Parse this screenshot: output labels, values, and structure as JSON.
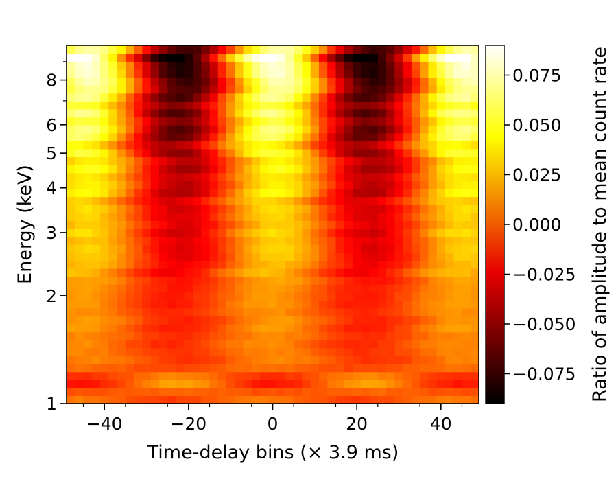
{
  "chart_data": {
    "type": "heatmap",
    "title": "",
    "xlabel": "Time-delay bins (× 3.9 ms)",
    "ylabel": "Energy (keV)",
    "colorbar_label": "Ratio of amplitude to mean count rate",
    "colormap": "hot",
    "x_range": [
      -49,
      49
    ],
    "y_range_keV": [
      1,
      10
    ],
    "y_scale": "log",
    "color_range": [
      -0.09,
      0.09
    ],
    "x_ticks": [
      -40,
      -20,
      0,
      20,
      40
    ],
    "x_tick_labels": [
      "−40",
      "−20",
      "0",
      "20",
      "40"
    ],
    "y_ticks": [
      1,
      2,
      3,
      4,
      5,
      6,
      8
    ],
    "y_tick_labels": [
      "1",
      "2",
      "3",
      "4",
      "5",
      "6",
      "8"
    ],
    "colorbar_ticks": [
      0.075,
      0.05,
      0.025,
      0.0,
      -0.025,
      -0.05,
      -0.075
    ],
    "colorbar_tick_labels": [
      "0.075",
      "0.050",
      "0.025",
      "0.000",
      "−0.025",
      "−0.050",
      "−0.075"
    ],
    "pattern": {
      "period_bins": 45,
      "peaks_at_bins": [
        -45,
        0,
        45
      ],
      "troughs_at_bins": [
        -22.5,
        22.5
      ],
      "peak_amplitude_keV_1": 0.01,
      "peak_amplitude_keV_9": 0.085,
      "low_energy_band": {
        "energy_keV": 1.15,
        "amplitude": 0.02,
        "phase": "inverted"
      }
    }
  }
}
